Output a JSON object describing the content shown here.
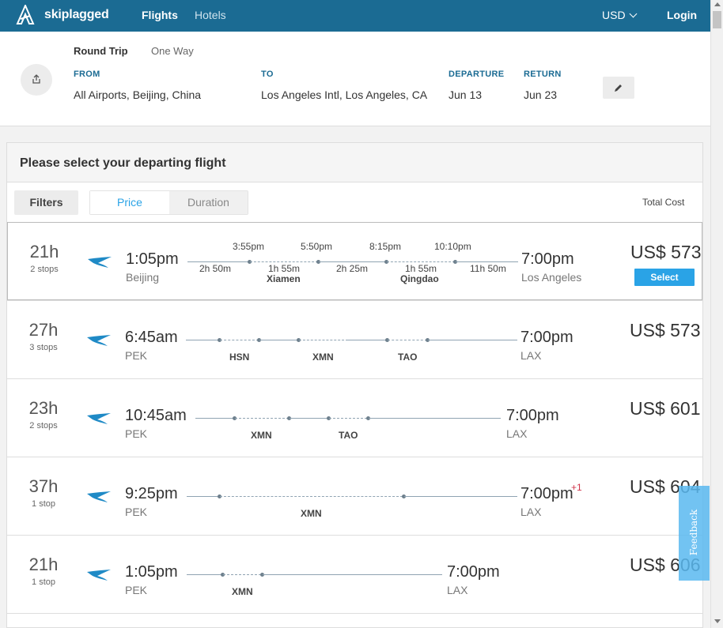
{
  "header": {
    "brand": "skiplagged",
    "nav_flights": "Flights",
    "nav_hotels": "Hotels",
    "currency": "USD",
    "login": "Login"
  },
  "search": {
    "trip_round": "Round Trip",
    "trip_oneway": "One Way",
    "from_label": "FROM",
    "from_value": "All Airports, Beijing, China",
    "to_label": "TO",
    "to_value": "Los Angeles Intl, Los Angeles, CA",
    "departure_label": "DEPARTURE",
    "departure_value": "Jun 13",
    "return_label": "RETURN",
    "return_value": "Jun 23",
    "share_icon": "share-icon",
    "edit_icon": "pencil-icon"
  },
  "results": {
    "title": "Please select your departing flight",
    "filters": "Filters",
    "sort_price": "Price",
    "sort_duration": "Duration",
    "total_cost": "Total Cost",
    "select_label": "Select",
    "plus_day": "+1",
    "flights": [
      {
        "duration": "21h",
        "stops": "2 stops",
        "dep_time": "1:05pm",
        "dep_place": "Beijing",
        "arr_time": "7:00pm",
        "arr_place": "Los Angeles",
        "price": "US$ 573",
        "times": [
          "3:55pm",
          "5:50pm",
          "8:15pm",
          "10:10pm"
        ],
        "legs": [
          "2h 50m",
          "1h 55m",
          "2h 25m",
          "1h 55m",
          "11h 50m"
        ],
        "stop_names": [
          "Xiamen",
          "Qingdao"
        ]
      },
      {
        "duration": "27h",
        "stops": "3 stops",
        "dep_time": "6:45am",
        "dep_place": "PEK",
        "arr_time": "7:00pm",
        "arr_place": "LAX",
        "price": "US$ 573",
        "stop_codes": [
          "HSN",
          "XMN",
          "TAO"
        ]
      },
      {
        "duration": "23h",
        "stops": "2 stops",
        "dep_time": "10:45am",
        "dep_place": "PEK",
        "arr_time": "7:00pm",
        "arr_place": "LAX",
        "price": "US$ 601",
        "stop_codes": [
          "XMN",
          "TAO"
        ]
      },
      {
        "duration": "37h",
        "stops": "1 stop",
        "dep_time": "9:25pm",
        "dep_place": "PEK",
        "arr_time": "7:00pm",
        "arr_place": "LAX",
        "price": "US$ 604",
        "stop_codes": [
          "XMN"
        ]
      },
      {
        "duration": "21h",
        "stops": "1 stop",
        "dep_time": "1:05pm",
        "dep_place": "PEK",
        "arr_time": "7:00pm",
        "arr_place": "LAX",
        "price": "US$ 606",
        "stop_codes": [
          "XMN"
        ]
      }
    ]
  },
  "feedback": "Feedback",
  "colors": {
    "brand_blue": "#1b6b93",
    "accent_blue": "#2aa3e6",
    "plus_day_red": "#d0344a"
  }
}
